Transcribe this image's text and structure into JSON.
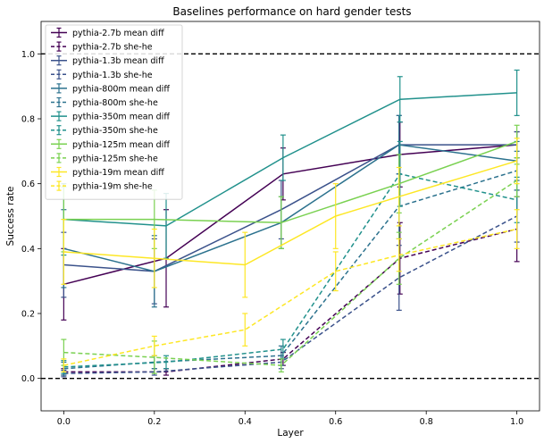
{
  "chart_data": {
    "type": "line",
    "title": "Baselines performance on hard gender tests",
    "xlabel": "Layer",
    "ylabel": "Success rate",
    "xlim": [
      -0.05,
      1.05
    ],
    "ylim": [
      -0.1,
      1.1
    ],
    "xticks": [
      0.0,
      0.2,
      0.4,
      0.6,
      0.8,
      1.0
    ],
    "xtick_labels": [
      "0.0",
      "0.2",
      "0.4",
      "0.6",
      "0.8",
      "1.0"
    ],
    "yticks": [
      0.0,
      0.2,
      0.4,
      0.6,
      0.8,
      1.0
    ],
    "ytick_labels": [
      "0.0",
      "0.2",
      "0.4",
      "0.6",
      "0.8",
      "1.0"
    ],
    "reference_lines": [
      0.0,
      1.0
    ],
    "grid": false,
    "legend_position": "upper left",
    "series": [
      {
        "name": "pythia-2.7b mean diff",
        "color": "#440154",
        "style": "solid",
        "x": [
          0.0,
          0.226,
          0.484,
          0.742,
          1.0
        ],
        "y": [
          0.29,
          0.37,
          0.63,
          0.69,
          0.72
        ],
        "err": [
          0.11,
          0.15,
          0.08,
          0.1,
          0.04
        ]
      },
      {
        "name": "pythia-2.7b she-he",
        "color": "#440154",
        "style": "dashed",
        "x": [
          0.0,
          0.226,
          0.484,
          0.742,
          1.0
        ],
        "y": [
          0.02,
          0.02,
          0.06,
          0.37,
          0.46
        ],
        "err": [
          0.01,
          0.01,
          0.02,
          0.11,
          0.1
        ]
      },
      {
        "name": "pythia-1.3b mean diff",
        "color": "#3b528b",
        "style": "solid",
        "x": [
          0.0,
          0.2,
          0.48,
          0.74,
          1.0
        ],
        "y": [
          0.35,
          0.33,
          0.52,
          0.72,
          0.72
        ],
        "err": [
          0.1,
          0.1,
          0.09,
          0.09,
          0.04
        ]
      },
      {
        "name": "pythia-1.3b she-he",
        "color": "#3b528b",
        "style": "dashed",
        "x": [
          0.0,
          0.2,
          0.48,
          0.74,
          1.0
        ],
        "y": [
          0.015,
          0.02,
          0.05,
          0.31,
          0.5
        ],
        "err": [
          0.01,
          0.01,
          0.02,
          0.1,
          0.08
        ]
      },
      {
        "name": "pythia-800m mean diff",
        "color": "#2c728e",
        "style": "solid",
        "x": [
          0.0,
          0.2,
          0.48,
          0.74,
          1.0
        ],
        "y": [
          0.4,
          0.33,
          0.48,
          0.72,
          0.67
        ],
        "err": [
          0.12,
          0.11,
          0.08,
          0.09,
          0.06
        ]
      },
      {
        "name": "pythia-800m she-he",
        "color": "#2c728e",
        "style": "dashed",
        "x": [
          0.0,
          0.2,
          0.48,
          0.74,
          1.0
        ],
        "y": [
          0.03,
          0.05,
          0.07,
          0.53,
          0.64
        ],
        "err": [
          0.02,
          0.02,
          0.03,
          0.1,
          0.06
        ]
      },
      {
        "name": "pythia-350m mean diff",
        "color": "#21918c",
        "style": "solid",
        "x": [
          0.0,
          0.226,
          0.484,
          0.742,
          1.0
        ],
        "y": [
          0.49,
          0.47,
          0.68,
          0.86,
          0.88
        ],
        "err": [
          0.11,
          0.1,
          0.07,
          0.07,
          0.07
        ]
      },
      {
        "name": "pythia-350m she-he",
        "color": "#21918c",
        "style": "dashed",
        "x": [
          0.0,
          0.226,
          0.484,
          0.742,
          1.0
        ],
        "y": [
          0.035,
          0.05,
          0.09,
          0.63,
          0.55
        ],
        "err": [
          0.02,
          0.02,
          0.03,
          0.1,
          0.07
        ]
      },
      {
        "name": "pythia-125m mean diff",
        "color": "#7ad151",
        "style": "solid",
        "x": [
          0.0,
          0.2,
          0.48,
          0.74,
          1.0
        ],
        "y": [
          0.49,
          0.49,
          0.48,
          0.6,
          0.73
        ],
        "err": [
          0.1,
          0.09,
          0.08,
          0.09,
          0.05
        ]
      },
      {
        "name": "pythia-125m she-he",
        "color": "#7ad151",
        "style": "dashed",
        "x": [
          0.0,
          0.2,
          0.48,
          0.74,
          1.0
        ],
        "y": [
          0.08,
          0.065,
          0.04,
          0.37,
          0.61
        ],
        "err": [
          0.04,
          0.05,
          0.02,
          0.08,
          0.05
        ]
      },
      {
        "name": "pythia-19m mean diff",
        "color": "#fde725",
        "style": "solid",
        "x": [
          0.0,
          0.2,
          0.4,
          0.6,
          0.74,
          1.0
        ],
        "y": [
          0.39,
          0.37,
          0.35,
          0.5,
          0.56,
          0.67
        ],
        "err": [
          0.1,
          0.09,
          0.1,
          0.1,
          0.09,
          0.07
        ]
      },
      {
        "name": "pythia-19m she-he",
        "color": "#fde725",
        "style": "dashed",
        "x": [
          0.0,
          0.2,
          0.4,
          0.6,
          0.74,
          1.0
        ],
        "y": [
          0.04,
          0.1,
          0.15,
          0.33,
          0.38,
          0.46
        ],
        "err": [
          0.02,
          0.03,
          0.05,
          0.06,
          0.05,
          0.06
        ]
      }
    ]
  }
}
